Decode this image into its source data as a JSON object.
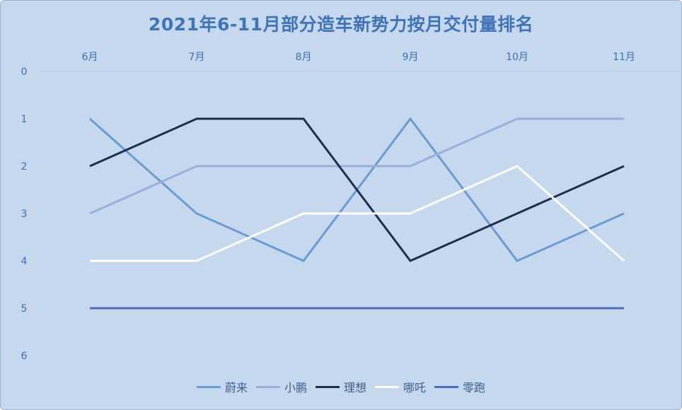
{
  "chart_data": {
    "type": "line",
    "title": "2021年6-11月部分造车新势力按月交付量排名",
    "xlabel": "",
    "ylabel": "",
    "x": [
      "6月",
      "7月",
      "8月",
      "9月",
      "10月",
      "11月"
    ],
    "yticks": [
      "0",
      "1",
      "2",
      "3",
      "4",
      "5",
      "6"
    ],
    "ylim": [
      0,
      6
    ],
    "y_reversed": true,
    "x_axis_position": "top",
    "grid": false,
    "legend_position": "bottom",
    "series": [
      {
        "name": "蔚来",
        "color": "#6b9bd1",
        "values": [
          1,
          3,
          4,
          1,
          4,
          3
        ]
      },
      {
        "name": "小鹏",
        "color": "#9aaedc",
        "values": [
          3,
          2,
          2,
          2,
          1,
          1
        ]
      },
      {
        "name": "理想",
        "color": "#1f2d4e",
        "values": [
          2,
          1,
          1,
          4,
          3,
          2
        ]
      },
      {
        "name": "哪吒",
        "color": "#ffffff",
        "values": [
          4,
          4,
          3,
          3,
          2,
          4
        ]
      },
      {
        "name": "零跑",
        "color": "#4a6ec0",
        "values": [
          5,
          5,
          5,
          5,
          5,
          5
        ]
      }
    ]
  }
}
